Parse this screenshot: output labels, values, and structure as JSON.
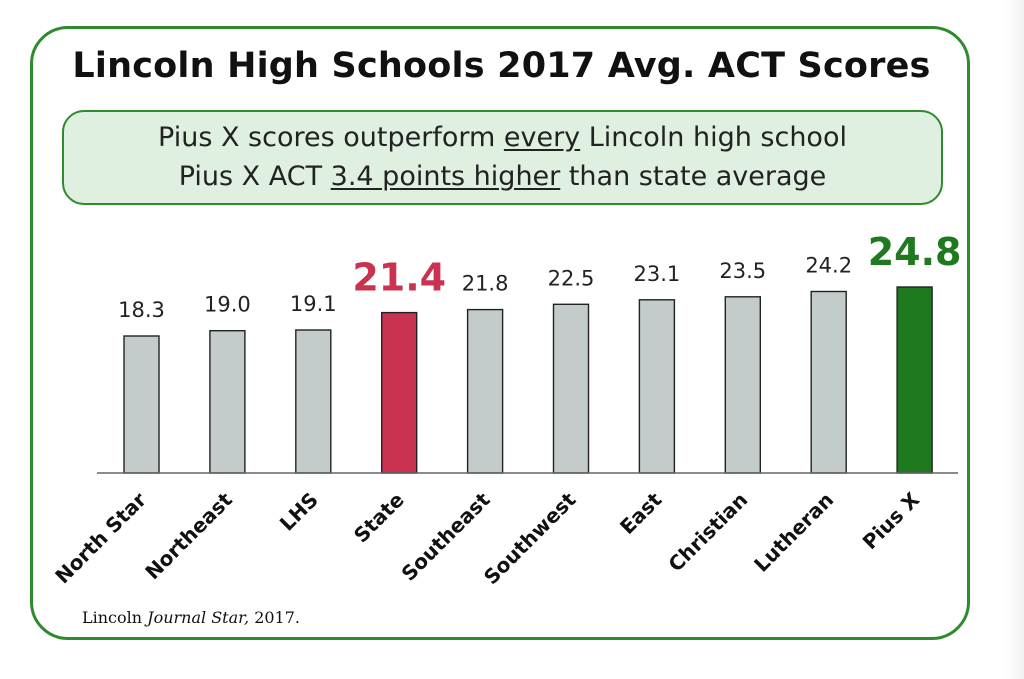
{
  "title": "Lincoln High Schools 2017 Avg. ACT Scores",
  "callout": {
    "line1_pre": "Pius X scores outperform ",
    "line1_underline": "every",
    "line1_post": " Lincoln high school",
    "line2_pre": "Pius X ACT ",
    "line2_underline": "3.4 points higher",
    "line2_post": " than state average"
  },
  "source": {
    "pre": "Lincoln ",
    "italic": "Journal Star,",
    "post": " 2017."
  },
  "colors": {
    "frame_green": "#2e8b2e",
    "callout_fill": "#e0f0e0",
    "default_bar": "#c4cccb",
    "state_bar": "#c9334f",
    "piusx_bar": "#1f7a1f"
  },
  "chart_data": {
    "type": "bar",
    "categories": [
      "North Star",
      "Northeast",
      "LHS",
      "State",
      "Southeast",
      "Southwest",
      "East",
      "Christian",
      "Lutheran",
      "Pius X"
    ],
    "values": [
      18.3,
      19.0,
      19.1,
      21.4,
      21.8,
      22.5,
      23.1,
      23.5,
      24.2,
      24.8
    ],
    "data_labels": [
      "18.3",
      "19.0",
      "19.1",
      "21.4",
      "21.8",
      "22.5",
      "23.1",
      "23.5",
      "24.2",
      "24.8"
    ],
    "highlight": {
      "State": "state",
      "Pius X": "piusx"
    },
    "title": "Lincoln High Schools 2017 Avg. ACT Scores",
    "xlabel": "",
    "ylabel": "",
    "ylim": [
      0,
      24.8
    ],
    "grid": false,
    "legend": "none",
    "x_tick_rotation": "-45"
  }
}
